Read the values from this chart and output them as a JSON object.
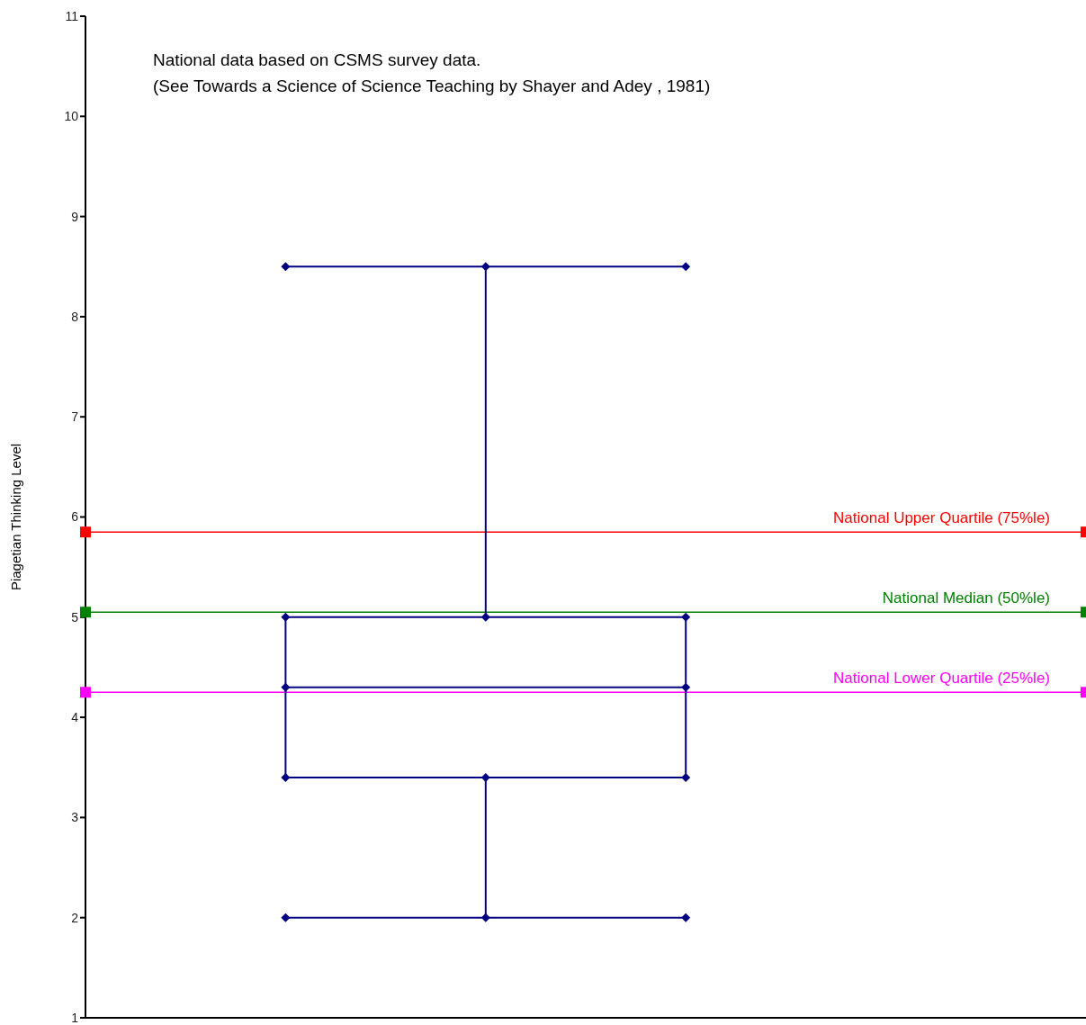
{
  "chart_data": {
    "type": "box",
    "ylabel": "Piagetian Thinking Level",
    "annotations": [
      "National data based on CSMS  survey data.",
      "(See Towards a Science of Science Teaching by Shayer and Adey , 1981)"
    ],
    "categories": [
      null
    ],
    "boxes": [
      {
        "low": 2,
        "q1": 3.4,
        "median": 4.3,
        "q3": 5,
        "high": 8.5
      }
    ],
    "color": "#000080",
    "marker": "diamond",
    "ylim": [
      1,
      11
    ],
    "yticks": [
      1,
      2,
      3,
      4,
      5,
      6,
      7,
      8,
      9,
      10,
      11
    ],
    "tick_labels": "y",
    "ref_lines": [
      {
        "axis": "y",
        "value": 5.85,
        "label": "National Upper Quartile  (75%le)",
        "color": "#ff0000"
      },
      {
        "axis": "y",
        "value": 5.05,
        "label": "National Median  (50%le)",
        "color": "#008000"
      },
      {
        "axis": "y",
        "value": 4.25,
        "label": "National Lower Quartile (25%le)",
        "color": "#ff00ff"
      }
    ]
  }
}
